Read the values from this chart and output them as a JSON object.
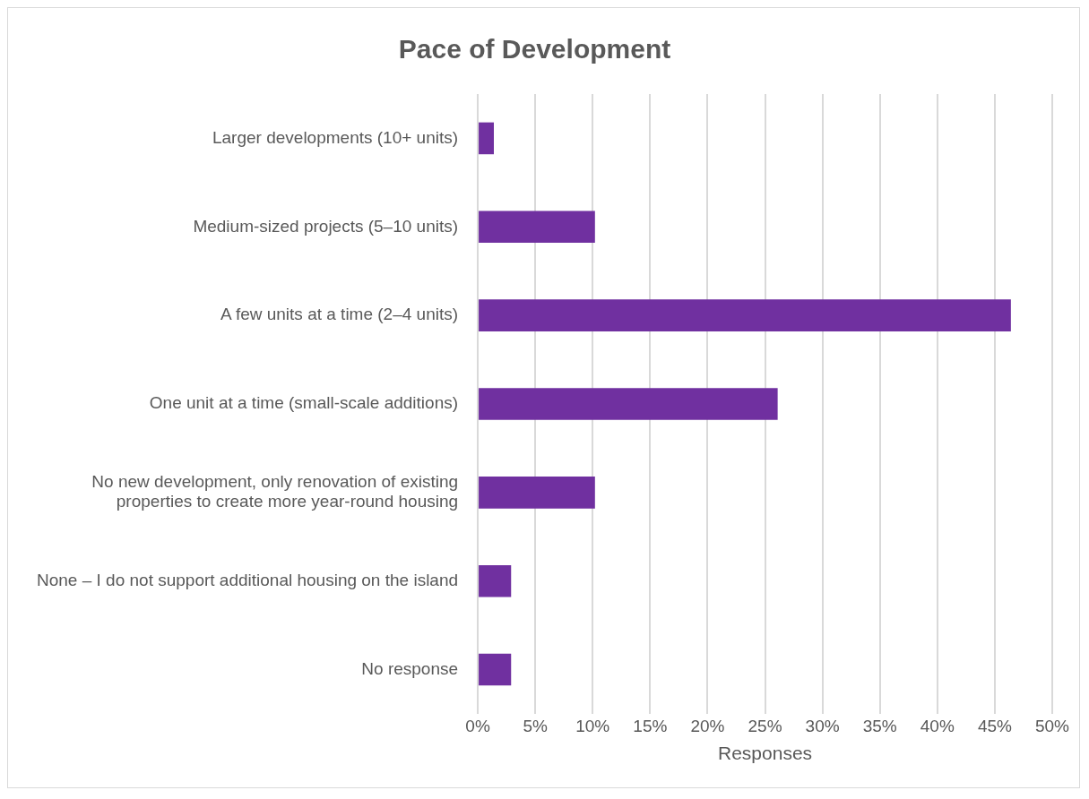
{
  "chart_data": {
    "type": "bar",
    "orientation": "horizontal",
    "title": "Pace of Development",
    "xlabel": "Responses",
    "categories": [
      "Larger developments (10+ units)",
      "Medium-sized projects (5–10 units)",
      "A few units at a time (2–4 units)",
      "One unit at a time (small-scale additions)",
      "No new development, only renovation of existing properties to create more year-round housing",
      "None – I do not support additional housing on the island",
      "No response"
    ],
    "values": [
      1.4,
      10.2,
      46.4,
      26.1,
      10.2,
      2.9,
      2.9
    ],
    "color": "#7030a0",
    "xlim": [
      0,
      50
    ],
    "xticks": [
      {
        "value": 0,
        "label": "0%"
      },
      {
        "value": 5,
        "label": "5%"
      },
      {
        "value": 10,
        "label": "10%"
      },
      {
        "value": 15,
        "label": "15%"
      },
      {
        "value": 20,
        "label": "20%"
      },
      {
        "value": 25,
        "label": "25%"
      },
      {
        "value": 30,
        "label": "30%"
      },
      {
        "value": 35,
        "label": "35%"
      },
      {
        "value": 40,
        "label": "40%"
      },
      {
        "value": 45,
        "label": "45%"
      },
      {
        "value": 50,
        "label": "50%"
      }
    ],
    "grid": "x",
    "legend": false
  }
}
